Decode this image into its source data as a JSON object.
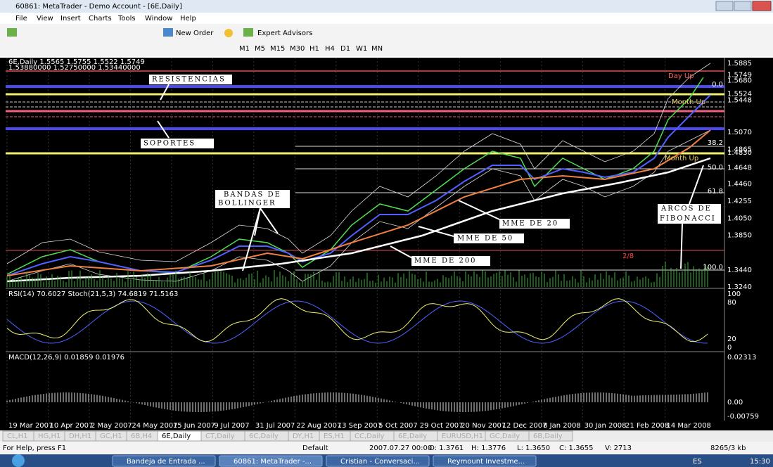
{
  "window": {
    "title": "60861: MetaTrader - Demo Account - [6E,Daily]"
  },
  "menu": [
    "File",
    "View",
    "Insert",
    "Charts",
    "Tools",
    "Window",
    "Help"
  ],
  "toolbar": {
    "new_order": "New Order",
    "expert_advisors": "Expert Advisors",
    "periods": [
      "M1",
      "M5",
      "M15",
      "M30",
      "H1",
      "H4",
      "D1",
      "W1",
      "MN"
    ]
  },
  "chart": {
    "info": [
      "6E,Daily  1.5565 1.5755 1.5522 1.5749",
      "1.53880000 1.52750000 1.53440000"
    ],
    "annotations": {
      "resistencias": "RESISTENCIAS",
      "soportes": "SOPORTES",
      "bollinger": [
        "BANDAS DE",
        "BOLLINGER"
      ],
      "mme20": "MME  DE  20",
      "mme50": "MME  DE  50",
      "mme200": "MME  DE  200",
      "fibonacci": [
        "ARCOS DE",
        "FIBONACCI"
      ]
    },
    "labels": {
      "day_up": "Day Up",
      "month_up": "Month Up",
      "month_up2": "Month Up",
      "ratio": "2/8"
    },
    "fib_levels": [
      "0.0",
      "38.2",
      "50.0",
      "61.8",
      "100.0"
    ],
    "price_axis": [
      "1.5885",
      "1.5749",
      "1.5680",
      "1.5524",
      "1.5448",
      "1.5070",
      "1.4865",
      "1.4830",
      "1.4648",
      "1.4460",
      "1.4255",
      "1.4050",
      "1.3850",
      "1.3440",
      "1.3240"
    ],
    "rsi": {
      "info": "RSI(14) 70.6027  Stoch(21,5,3) 74.6819 71.5163",
      "axis": [
        "100",
        "80",
        "20",
        "0"
      ]
    },
    "macd": {
      "info": "MACD(12,26,9) 0.01859 0.01976",
      "axis": [
        "0.02313",
        "0.00",
        "-0.00759"
      ]
    },
    "dates": [
      "19 Mar 2007",
      "10 Apr 2007",
      "2 May 2007",
      "24 May 2007",
      "15 Jun 2007",
      "9 Jul 2007",
      "31 Jul 2007",
      "22 Aug 2007",
      "13 Sep 2007",
      "5 Oct 2007",
      "29 Oct 2007",
      "20 Nov 2007",
      "12 Dec 2007",
      "8 Jan 2008",
      "30 Jan 2008",
      "21 Feb 2008",
      "14 Mar 2008"
    ]
  },
  "tabs": [
    "CL,H1",
    "HG,H1",
    "DH,H1",
    "GC,H1",
    "6B,H4",
    "6E,Daily",
    "CT,Daily",
    "6C,Daily",
    "DY,H1",
    "ES,H1",
    "CC,Daily",
    "6E,Daily",
    "EURUSD,H1",
    "GC,Daily",
    "6B,Daily"
  ],
  "status": {
    "help": "For Help, press F1",
    "profile": "Default",
    "time": "2007.07.27 00:00",
    "open": "O: 1.3761",
    "high": "H: 1.3776",
    "low": "L: 1.3650",
    "close": "C: 1.3655",
    "volume": "V: 2713",
    "traffic": "8265/3 kb"
  },
  "taskbar": {
    "items": [
      "Bandeja de Entrada ...",
      "60861: MetaTrader -...",
      "Cristian - Conversaci...",
      "Reymount Investme..."
    ],
    "lang": "ES",
    "clock": "15:30"
  }
}
